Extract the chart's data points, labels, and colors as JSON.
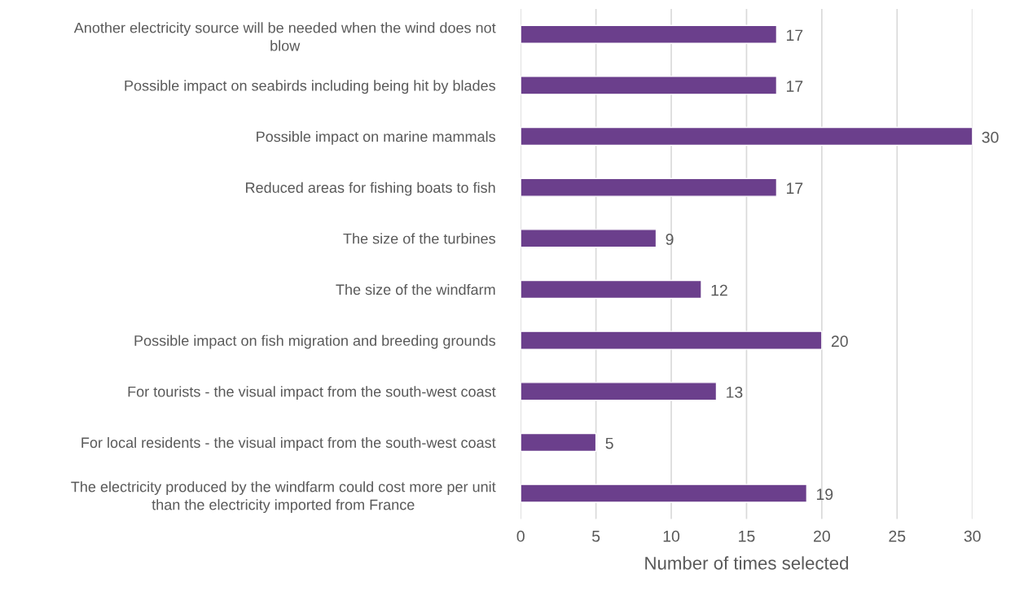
{
  "chart_data": {
    "type": "bar",
    "orientation": "horizontal",
    "categories": [
      "Another electricity source will be needed when the wind does not\nblow",
      "Possible impact on seabirds including being hit by blades",
      "Possible impact on marine mammals",
      "Reduced areas for fishing boats to fish",
      "The size of the turbines",
      "The size of the windfarm",
      "Possible impact on fish migration and breeding grounds",
      "For tourists - the visual impact from the south-west coast",
      "For local residents - the visual impact from the south-west coast",
      "The electricity produced by the windfarm could cost more per unit\nthan the electricity imported from France"
    ],
    "values": [
      17,
      17,
      30,
      17,
      9,
      12,
      20,
      13,
      5,
      19
    ],
    "color": "#6b3f8c",
    "xlabel": "Number of times selected",
    "xlim": [
      0,
      30
    ],
    "xticks": [
      0,
      5,
      10,
      15,
      20,
      25,
      30
    ],
    "grid": "x",
    "data_labels": true
  }
}
